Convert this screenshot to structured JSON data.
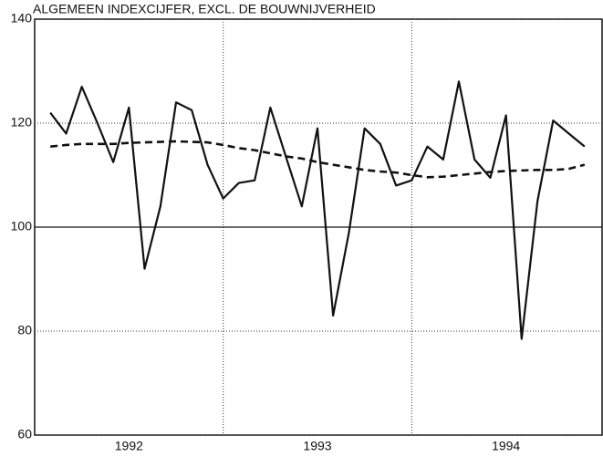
{
  "chart_data": {
    "type": "line",
    "title": "ALGEMEEN INDEXCIJFER, EXCL. DE BOUWNIJVERHEID",
    "x": [
      1992.083,
      1992.167,
      1992.25,
      1992.333,
      1992.417,
      1992.5,
      1992.583,
      1992.667,
      1992.75,
      1992.833,
      1992.917,
      1993.0,
      1993.083,
      1993.167,
      1993.25,
      1993.333,
      1993.417,
      1993.5,
      1993.583,
      1993.667,
      1993.75,
      1993.833,
      1993.917,
      1994.0,
      1994.083,
      1994.167,
      1994.25,
      1994.333,
      1994.417,
      1994.5,
      1994.583,
      1994.667,
      1994.75,
      1994.833,
      1994.917
    ],
    "series": [
      {
        "color": "#111111",
        "style": "solid",
        "values": [
          122,
          118,
          127,
          120,
          112.5,
          123,
          92,
          104,
          124,
          122.5,
          112,
          105.5,
          108.5,
          109,
          123,
          113.5,
          104,
          119,
          83,
          99,
          119,
          116,
          108,
          109,
          115.5,
          113,
          128,
          113,
          109.5,
          121.5,
          78.5,
          105,
          120.5,
          118,
          115.5
        ]
      },
      {
        "color": "#111111",
        "style": "dashed",
        "values": [
          115.5,
          115.8,
          116,
          116,
          116,
          116.2,
          116.3,
          116.4,
          116.5,
          116.4,
          116.3,
          115.8,
          115.2,
          114.8,
          114.2,
          113.6,
          113.2,
          112.5,
          112,
          111.5,
          111,
          110.7,
          110.5,
          110,
          109.6,
          109.7,
          110,
          110.3,
          110.6,
          110.8,
          110.9,
          111,
          111,
          111.2,
          112
        ]
      }
    ],
    "xlim": [
      1992,
      1995
    ],
    "xticks": [
      {
        "value": 1992.5,
        "label": "1992"
      },
      {
        "value": 1993.5,
        "label": "1993"
      },
      {
        "value": 1994.5,
        "label": "1994"
      }
    ],
    "xgrid": [
      1993,
      1994
    ],
    "ylim": [
      60,
      140
    ],
    "yticks": [
      60,
      80,
      100,
      120,
      140
    ],
    "reference_line": 100,
    "grid": true
  }
}
